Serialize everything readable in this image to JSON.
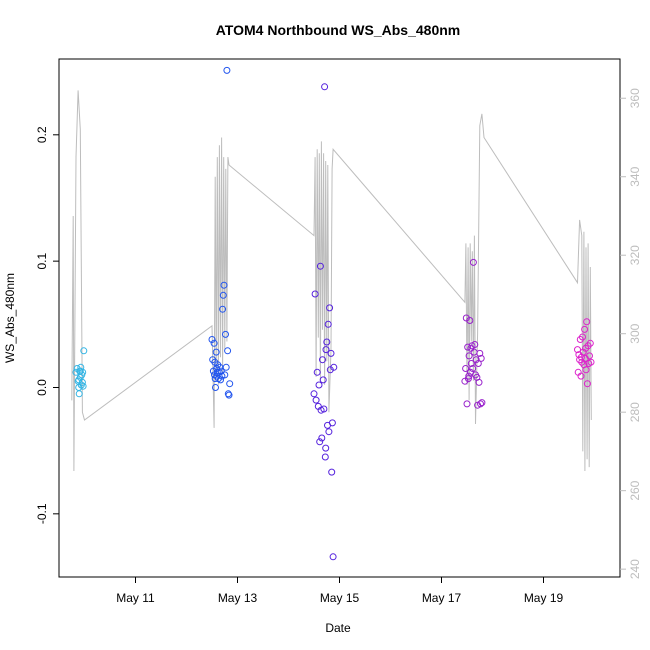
{
  "chart_data": {
    "type": "scatter",
    "title": "ATOM4 Northbound WS_Abs_480nm",
    "xlabel": "Date",
    "ylabel": "WS_Abs_480nm",
    "x_range": [
      "2016-05-09T12:00",
      "2016-05-20T12:00"
    ],
    "ylim": [
      -0.15,
      0.26
    ],
    "y_ticks": [
      -0.1,
      0.0,
      0.1,
      0.2
    ],
    "y_tick_labels": [
      "-0.1",
      "0.0",
      "0.1",
      "0.2"
    ],
    "x_ticks": [
      "2016-05-11",
      "2016-05-13",
      "2016-05-15",
      "2016-05-17",
      "2016-05-19"
    ],
    "x_tick_labels": [
      "May 11",
      "May 13",
      "May 15",
      "May 17",
      "May 19"
    ],
    "secondary_axis": {
      "ylim": [
        238,
        370
      ],
      "ticks": [
        240,
        260,
        280,
        300,
        320,
        340,
        360
      ],
      "tick_labels": [
        "240",
        "260",
        "280",
        "300",
        "320",
        "340",
        "360"
      ],
      "color": "#bdbdbd"
    },
    "grid": false,
    "legend": "none",
    "series": [
      {
        "color": "#33b5e5",
        "points": [
          [
            "2016-05-09T20:00",
            0.012
          ],
          [
            "2016-05-09T20:30",
            0.015
          ],
          [
            "2016-05-09T21:00",
            0.005
          ],
          [
            "2016-05-09T21:15",
            0.0
          ],
          [
            "2016-05-09T21:30",
            -0.005
          ],
          [
            "2016-05-09T21:45",
            0.013
          ],
          [
            "2016-05-09T22:00",
            0.008
          ],
          [
            "2016-05-09T22:15",
            0.016
          ],
          [
            "2016-05-09T22:30",
            0.002
          ],
          [
            "2016-05-09T22:45",
            0.01
          ],
          [
            "2016-05-09T23:00",
            0.004
          ],
          [
            "2016-05-09T23:10",
            0.012
          ],
          [
            "2016-05-09T23:20",
            0.001
          ],
          [
            "2016-05-09T23:40",
            0.029
          ],
          [
            "2016-05-09T22:00",
            0.013
          ],
          [
            "2016-05-09T21:20",
            0.006
          ]
        ]
      },
      {
        "color": "#2255ee",
        "points": [
          [
            "2016-05-12T12:00",
            0.038
          ],
          [
            "2016-05-12T12:20",
            0.022
          ],
          [
            "2016-05-12T12:40",
            0.013
          ],
          [
            "2016-05-12T13:00",
            0.035
          ],
          [
            "2016-05-12T13:10",
            0.01
          ],
          [
            "2016-05-12T13:20",
            0.02
          ],
          [
            "2016-05-12T13:30",
            0.007
          ],
          [
            "2016-05-12T13:40",
            0.0
          ],
          [
            "2016-05-12T14:00",
            0.028
          ],
          [
            "2016-05-12T14:10",
            0.015
          ],
          [
            "2016-05-12T14:20",
            0.009
          ],
          [
            "2016-05-12T14:40",
            0.018
          ],
          [
            "2016-05-12T15:00",
            0.007
          ],
          [
            "2016-05-12T15:20",
            0.012
          ],
          [
            "2016-05-12T15:40",
            0.016
          ],
          [
            "2016-05-12T16:00",
            0.006
          ],
          [
            "2016-05-12T16:20",
            0.013
          ],
          [
            "2016-05-12T16:40",
            0.009
          ],
          [
            "2016-05-12T17:00",
            0.062
          ],
          [
            "2016-05-12T17:20",
            0.073
          ],
          [
            "2016-05-12T17:40",
            0.081
          ],
          [
            "2016-05-12T18:00",
            0.01
          ],
          [
            "2016-05-12T18:20",
            0.042
          ],
          [
            "2016-05-12T18:40",
            0.016
          ],
          [
            "2016-05-12T19:00",
            0.251
          ],
          [
            "2016-05-12T19:20",
            0.029
          ],
          [
            "2016-05-12T19:40",
            -0.005
          ],
          [
            "2016-05-12T20:00",
            -0.006
          ],
          [
            "2016-05-12T20:20",
            0.003
          ],
          [
            "2016-05-12T14:30",
            0.012
          ]
        ]
      },
      {
        "color": "#5522dd",
        "points": [
          [
            "2016-05-14T12:00",
            -0.005
          ],
          [
            "2016-05-14T12:30",
            0.074
          ],
          [
            "2016-05-14T13:00",
            -0.01
          ],
          [
            "2016-05-14T13:30",
            0.012
          ],
          [
            "2016-05-14T14:00",
            -0.015
          ],
          [
            "2016-05-14T14:20",
            0.002
          ],
          [
            "2016-05-14T14:40",
            -0.043
          ],
          [
            "2016-05-14T15:00",
            0.096
          ],
          [
            "2016-05-14T15:20",
            -0.018
          ],
          [
            "2016-05-14T15:40",
            -0.04
          ],
          [
            "2016-05-14T16:00",
            0.022
          ],
          [
            "2016-05-14T16:20",
            0.006
          ],
          [
            "2016-05-14T16:40",
            -0.017
          ],
          [
            "2016-05-14T17:00",
            0.238
          ],
          [
            "2016-05-14T17:20",
            -0.055
          ],
          [
            "2016-05-14T17:40",
            0.03
          ],
          [
            "2016-05-14T18:00",
            0.036
          ],
          [
            "2016-05-14T18:20",
            -0.03
          ],
          [
            "2016-05-14T18:40",
            0.05
          ],
          [
            "2016-05-14T19:00",
            -0.035
          ],
          [
            "2016-05-14T19:20",
            0.063
          ],
          [
            "2016-05-14T19:40",
            0.014
          ],
          [
            "2016-05-14T20:00",
            0.027
          ],
          [
            "2016-05-14T20:20",
            -0.067
          ],
          [
            "2016-05-14T20:40",
            -0.028
          ],
          [
            "2016-05-14T21:00",
            -0.134
          ],
          [
            "2016-05-14T21:20",
            0.016
          ],
          [
            "2016-05-14T17:30",
            -0.048
          ]
        ]
      },
      {
        "color": "#9922cc",
        "points": [
          [
            "2016-05-17T11:00",
            0.005
          ],
          [
            "2016-05-17T11:20",
            0.015
          ],
          [
            "2016-05-17T11:40",
            0.055
          ],
          [
            "2016-05-17T12:00",
            -0.013
          ],
          [
            "2016-05-17T12:20",
            0.032
          ],
          [
            "2016-05-17T12:40",
            0.007
          ],
          [
            "2016-05-17T13:00",
            0.025
          ],
          [
            "2016-05-17T13:20",
            0.053
          ],
          [
            "2016-05-17T13:40",
            0.012
          ],
          [
            "2016-05-17T14:00",
            0.019
          ],
          [
            "2016-05-17T14:20",
            0.033
          ],
          [
            "2016-05-17T14:40",
            0.015
          ],
          [
            "2016-05-17T15:00",
            0.099
          ],
          [
            "2016-05-17T15:20",
            0.028
          ],
          [
            "2016-05-17T15:40",
            0.034
          ],
          [
            "2016-05-17T16:00",
            0.01
          ],
          [
            "2016-05-17T16:20",
            0.022
          ],
          [
            "2016-05-17T16:40",
            0.008
          ],
          [
            "2016-05-17T17:00",
            -0.014
          ],
          [
            "2016-05-17T17:20",
            0.019
          ],
          [
            "2016-05-17T17:40",
            0.004
          ],
          [
            "2016-05-17T18:00",
            0.027
          ],
          [
            "2016-05-17T18:20",
            -0.013
          ],
          [
            "2016-05-17T18:40",
            0.023
          ],
          [
            "2016-05-17T19:00",
            -0.012
          ],
          [
            "2016-05-17T12:50",
            0.009
          ],
          [
            "2016-05-17T13:50",
            0.031
          ]
        ]
      },
      {
        "color": "#dd22cc",
        "points": [
          [
            "2016-05-19T16:00",
            0.03
          ],
          [
            "2016-05-19T16:20",
            0.012
          ],
          [
            "2016-05-19T16:40",
            0.026
          ],
          [
            "2016-05-19T17:00",
            0.022
          ],
          [
            "2016-05-19T17:20",
            0.038
          ],
          [
            "2016-05-19T17:40",
            0.009
          ],
          [
            "2016-05-19T18:00",
            0.02
          ],
          [
            "2016-05-19T18:20",
            0.04
          ],
          [
            "2016-05-19T18:40",
            0.028
          ],
          [
            "2016-05-19T19:00",
            0.018
          ],
          [
            "2016-05-19T19:20",
            0.046
          ],
          [
            "2016-05-19T19:40",
            0.023
          ],
          [
            "2016-05-19T20:00",
            0.014
          ],
          [
            "2016-05-19T20:20",
            0.052
          ],
          [
            "2016-05-19T20:40",
            0.003
          ],
          [
            "2016-05-19T21:00",
            0.033
          ],
          [
            "2016-05-19T21:20",
            0.019
          ],
          [
            "2016-05-19T21:40",
            0.025
          ],
          [
            "2016-05-19T22:00",
            0.035
          ],
          [
            "2016-05-19T22:20",
            0.02
          ],
          [
            "2016-05-19T17:50",
            0.024
          ],
          [
            "2016-05-19T19:50",
            0.031
          ]
        ]
      },
      {
        "color": "#bdbdbd",
        "axis": "secondary",
        "line": [
          [
            "2016-05-09T18:00",
            283
          ],
          [
            "2016-05-09T18:40",
            330
          ],
          [
            "2016-05-09T19:00",
            265
          ],
          [
            "2016-05-09T20:00",
            345
          ],
          [
            "2016-05-09T21:00",
            362
          ],
          [
            "2016-05-09T22:00",
            352
          ],
          [
            "2016-05-09T23:00",
            280
          ],
          [
            "2016-05-10T00:00",
            278
          ],
          [
            "2016-05-12T12:00",
            302
          ],
          [
            "2016-05-12T13:00",
            276
          ],
          [
            "2016-05-12T13:30",
            340
          ],
          [
            "2016-05-12T14:00",
            289
          ],
          [
            "2016-05-12T14:30",
            345
          ],
          [
            "2016-05-12T15:00",
            287
          ],
          [
            "2016-05-12T15:30",
            348
          ],
          [
            "2016-05-12T16:00",
            294
          ],
          [
            "2016-05-12T16:30",
            350
          ],
          [
            "2016-05-12T17:00",
            290
          ],
          [
            "2016-05-12T17:30",
            345
          ],
          [
            "2016-05-12T18:00",
            296
          ],
          [
            "2016-05-12T18:30",
            342
          ],
          [
            "2016-05-12T19:00",
            298
          ],
          [
            "2016-05-12T19:30",
            345
          ],
          [
            "2016-05-12T20:00",
            343
          ],
          [
            "2016-05-14T12:00",
            325
          ],
          [
            "2016-05-14T12:30",
            345
          ],
          [
            "2016-05-14T13:00",
            289
          ],
          [
            "2016-05-14T13:30",
            347
          ],
          [
            "2016-05-14T14:00",
            299
          ],
          [
            "2016-05-14T14:30",
            346
          ],
          [
            "2016-05-14T15:00",
            288
          ],
          [
            "2016-05-14T15:30",
            349
          ],
          [
            "2016-05-14T16:00",
            301
          ],
          [
            "2016-05-14T16:30",
            346
          ],
          [
            "2016-05-14T17:00",
            287
          ],
          [
            "2016-05-14T17:30",
            344
          ],
          [
            "2016-05-14T18:00",
            293
          ],
          [
            "2016-05-14T18:30",
            343
          ],
          [
            "2016-05-14T19:00",
            280
          ],
          [
            "2016-05-14T20:00",
            296
          ],
          [
            "2016-05-14T20:30",
            342
          ],
          [
            "2016-05-14T21:00",
            347
          ],
          [
            "2016-05-17T11:00",
            308
          ],
          [
            "2016-05-17T11:30",
            323
          ],
          [
            "2016-05-17T12:00",
            287
          ],
          [
            "2016-05-17T12:30",
            322
          ],
          [
            "2016-05-17T13:00",
            283
          ],
          [
            "2016-05-17T13:30",
            323
          ],
          [
            "2016-05-17T14:00",
            298
          ],
          [
            "2016-05-17T14:30",
            321
          ],
          [
            "2016-05-17T15:00",
            288
          ],
          [
            "2016-05-17T15:30",
            325
          ],
          [
            "2016-05-17T16:00",
            277
          ],
          [
            "2016-05-17T17:00",
            300
          ],
          [
            "2016-05-17T18:00",
            353
          ],
          [
            "2016-05-17T19:00",
            356
          ],
          [
            "2016-05-17T20:00",
            350
          ],
          [
            "2016-05-19T16:00",
            313
          ],
          [
            "2016-05-19T17:00",
            329
          ],
          [
            "2016-05-19T18:00",
            325
          ],
          [
            "2016-05-19T18:30",
            270
          ],
          [
            "2016-05-19T19:00",
            326
          ],
          [
            "2016-05-19T19:30",
            265
          ],
          [
            "2016-05-19T20:00",
            322
          ],
          [
            "2016-05-19T20:30",
            268
          ],
          [
            "2016-05-19T21:00",
            323
          ],
          [
            "2016-05-19T21:30",
            266
          ],
          [
            "2016-05-19T22:00",
            317
          ],
          [
            "2016-05-19T22:30",
            278
          ]
        ]
      }
    ]
  }
}
